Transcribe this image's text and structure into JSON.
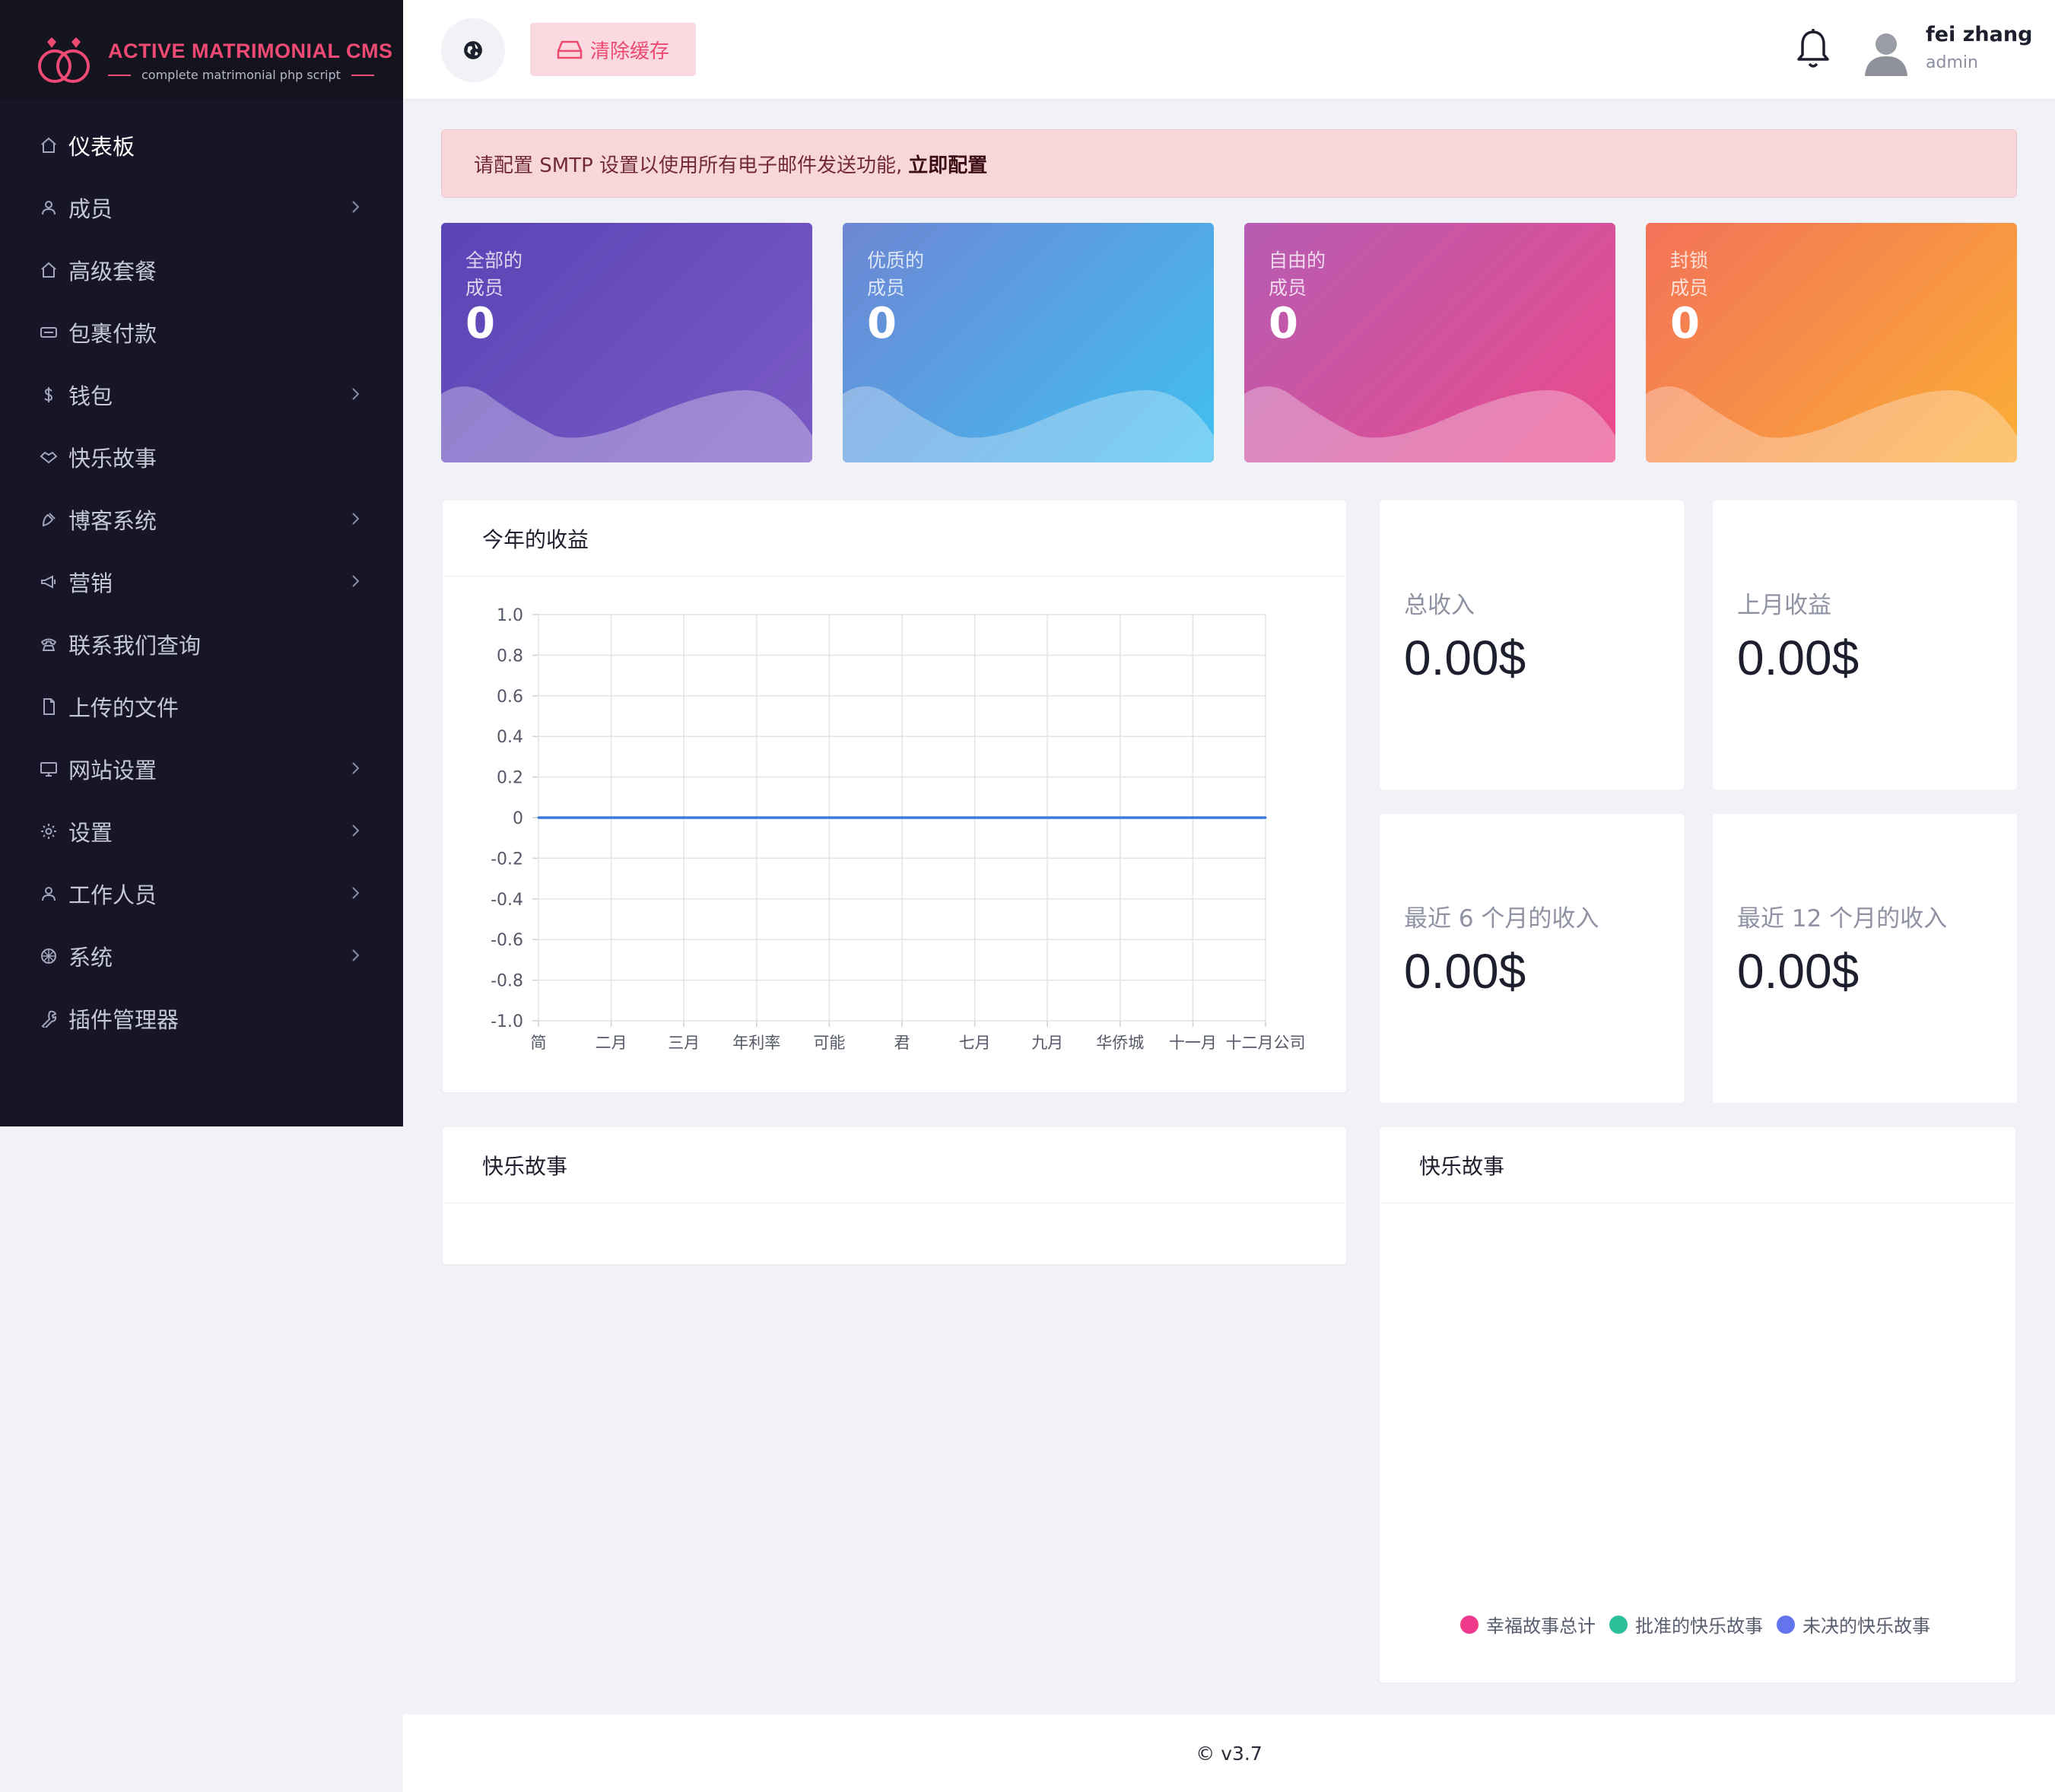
{
  "brand": {
    "title": "ACTIVE MATRIMONIAL CMS",
    "subtitle": "complete matrimonial php script",
    "accent": "#ef4a73"
  },
  "sidebar": {
    "items": [
      {
        "label": "仪表板",
        "icon": "home-icon",
        "expandable": false,
        "active": true
      },
      {
        "label": "成员",
        "icon": "user-icon",
        "expandable": true
      },
      {
        "label": "高级套餐",
        "icon": "home-icon",
        "expandable": false
      },
      {
        "label": "包裹付款",
        "icon": "card-icon",
        "expandable": false
      },
      {
        "label": "钱包",
        "icon": "dollar-icon",
        "expandable": true
      },
      {
        "label": "快乐故事",
        "icon": "handshake-icon",
        "expandable": false
      },
      {
        "label": "博客系统",
        "icon": "blog-icon",
        "expandable": true
      },
      {
        "label": "营销",
        "icon": "megaphone-icon",
        "expandable": true
      },
      {
        "label": "联系我们查询",
        "icon": "phone-icon",
        "expandable": false
      },
      {
        "label": "上传的文件",
        "icon": "file-icon",
        "expandable": false
      },
      {
        "label": "网站设置",
        "icon": "monitor-icon",
        "expandable": true
      },
      {
        "label": "设置",
        "icon": "gear-icon",
        "expandable": true
      },
      {
        "label": "工作人员",
        "icon": "user-icon",
        "expandable": true
      },
      {
        "label": "系统",
        "icon": "system-icon",
        "expandable": true
      },
      {
        "label": "插件管理器",
        "icon": "wrench-icon",
        "expandable": false
      }
    ]
  },
  "header": {
    "cache_button": "清除缓存",
    "user_name": "fei zhang",
    "user_role": "admin"
  },
  "alert": {
    "text": "请配置 SMTP 设置以使用所有电子邮件发送功能,",
    "link": "立即配置"
  },
  "stats": [
    {
      "line1": "全部的",
      "line2": "成员",
      "value": "0"
    },
    {
      "line1": "优质的",
      "line2": "成员",
      "value": "0"
    },
    {
      "line1": "自由的",
      "line2": "成员",
      "value": "0"
    },
    {
      "line1": "封锁",
      "line2": "成员",
      "value": "0"
    }
  ],
  "earnings_panel": {
    "title": "今年的收益"
  },
  "chart_data": {
    "type": "line",
    "title": "",
    "categories": [
      "简",
      "二月",
      "三月",
      "年利率",
      "可能",
      "君",
      "七月",
      "九月",
      "华侨城",
      "十一月",
      "十二月公司"
    ],
    "y_ticks": [
      "1.0",
      "0.8",
      "0.6",
      "0.4",
      "0.2",
      "0",
      "-0.2",
      "-0.4",
      "-0.6",
      "-0.8",
      "-1.0"
    ],
    "ylim": [
      -1.0,
      1.0
    ],
    "series": [
      {
        "values": [
          0,
          0,
          0,
          0,
          0,
          0,
          0,
          0,
          0,
          0,
          0
        ],
        "color": "#3a7bdc"
      }
    ],
    "grid": true
  },
  "money": [
    {
      "label": "总收入",
      "value": "0.00$"
    },
    {
      "label": "上月收益",
      "value": "0.00$"
    },
    {
      "label": "最近 6 个月的收入",
      "value": "0.00$"
    },
    {
      "label": "最近 12 个月的收入",
      "value": "0.00$"
    }
  ],
  "stories_left": {
    "title": "快乐故事"
  },
  "stories_right": {
    "title": "快乐故事",
    "legend": [
      {
        "label": "幸福故事总计",
        "color": "#ef3a8c"
      },
      {
        "label": "批准的快乐故事",
        "color": "#2ebf9b"
      },
      {
        "label": "未决的快乐故事",
        "color": "#6474ee"
      }
    ]
  },
  "footer": {
    "text": "© v3.7"
  }
}
